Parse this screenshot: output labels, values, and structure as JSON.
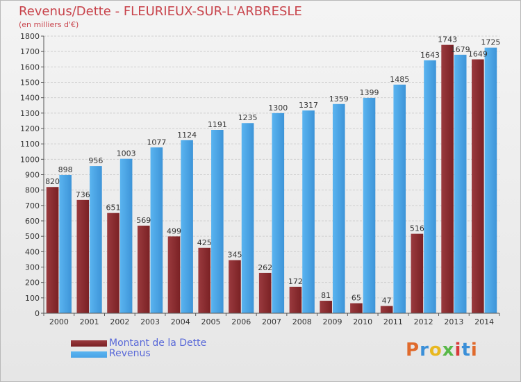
{
  "header": {
    "title": "Revenus/Dette - FLEURIEUX-SUR-L'ARBRESLE",
    "subtitle": "(en milliers d'€)"
  },
  "legend": {
    "debt_label": "Montant de la Dette",
    "revenue_label": "Revenus"
  },
  "logo": {
    "text": "Proxiti",
    "colors": [
      "#e06a2c",
      "#3a8fd8",
      "#e8b820",
      "#58b848",
      "#d83a3a",
      "#3a8fd8",
      "#e06a2c"
    ]
  },
  "colors": {
    "debt": "#7a2124",
    "revenue": "#4aa3e6",
    "title": "#c8434b",
    "legend_text": "#5868d8"
  },
  "chart_data": {
    "type": "bar",
    "categories": [
      "2000",
      "2001",
      "2002",
      "2003",
      "2004",
      "2005",
      "2006",
      "2007",
      "2008",
      "2009",
      "2010",
      "2011",
      "2012",
      "2013",
      "2014"
    ],
    "series": [
      {
        "name": "Montant de la Dette",
        "values": [
          820,
          736,
          651,
          569,
          499,
          425,
          345,
          262,
          172,
          81,
          65,
          47,
          516,
          1743,
          1649
        ]
      },
      {
        "name": "Revenus",
        "values": [
          898,
          956,
          1003,
          1077,
          1124,
          1191,
          1235,
          1300,
          1317,
          1359,
          1399,
          1485,
          1643,
          1679,
          1725
        ]
      }
    ],
    "value_labels": {
      "debt": [
        "820",
        "736",
        "651",
        "569",
        "499",
        "425",
        "345",
        "262",
        "172",
        "81",
        "65",
        "47",
        "516",
        "1743",
        "1649"
      ],
      "revenue": [
        "898",
        "956",
        "1003",
        "1077",
        "1124",
        "1191",
        "1235",
        "1300",
        "1317",
        "1359",
        "1399",
        "1485",
        "1643",
        "1679",
        "1725"
      ]
    },
    "title": "Revenus/Dette - FLEURIEUX-SUR-L'ARBRESLE",
    "ylabel": "(en milliers d'€)",
    "xlabel": "",
    "ylim": [
      0,
      1800
    ],
    "yticks": [
      0,
      100,
      200,
      300,
      400,
      500,
      600,
      700,
      800,
      900,
      1000,
      1100,
      1200,
      1300,
      1400,
      1500,
      1600,
      1700,
      1800
    ],
    "grid": true,
    "legend_position": "bottom-left"
  }
}
